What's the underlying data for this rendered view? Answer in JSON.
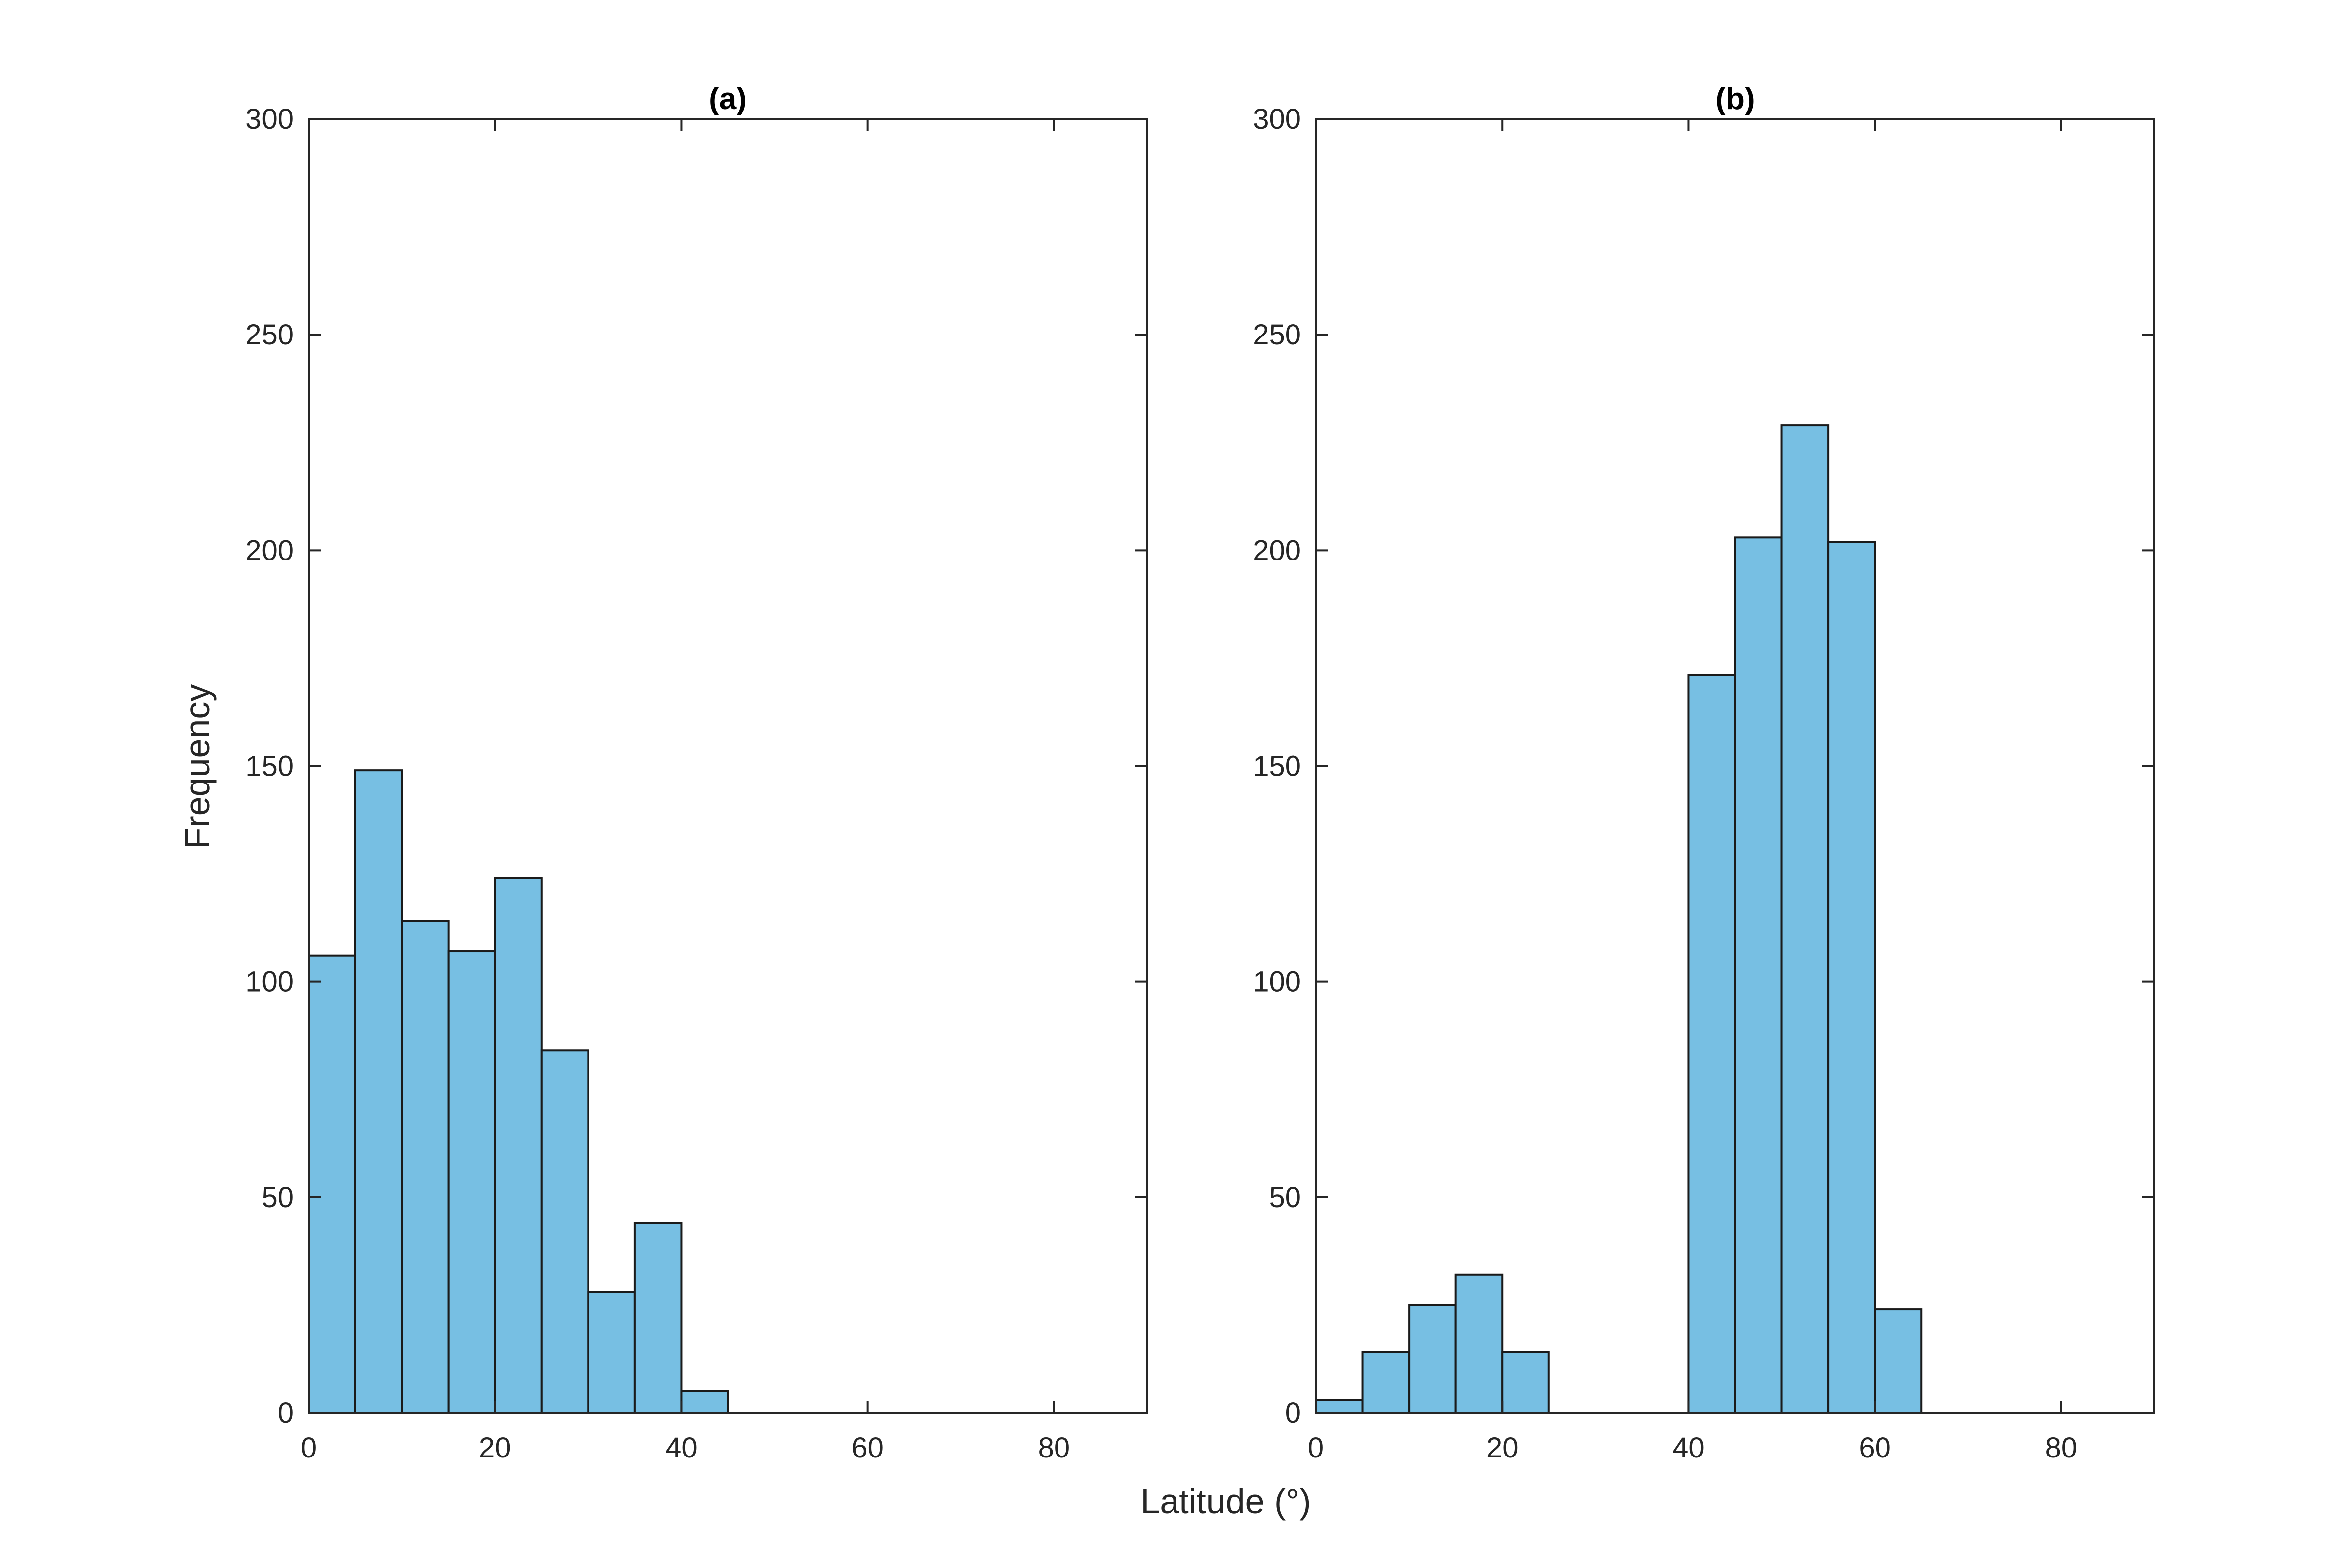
{
  "figure": {
    "xlabel": "Latitude (°)",
    "ylabel": "Frequency"
  },
  "chart_data": [
    {
      "type": "bar",
      "title": "(a)",
      "bin_width": 5,
      "bin_starts": [
        0,
        5,
        10,
        15,
        20,
        25,
        30,
        35,
        40
      ],
      "values": [
        106,
        149,
        114,
        107,
        124,
        84,
        28,
        44,
        5
      ],
      "xlim": [
        0,
        90
      ],
      "ylim": [
        0,
        300
      ],
      "xticks": [
        "0",
        "20",
        "40",
        "60",
        "80"
      ],
      "yticks": [
        "0",
        "50",
        "100",
        "150",
        "200",
        "250",
        "300"
      ],
      "bar_color": "#77bfe3",
      "edge_color": "#1a1a1a",
      "grid": false
    },
    {
      "type": "bar",
      "title": "(b)",
      "bin_width": 5,
      "bin_starts": [
        0,
        5,
        10,
        15,
        20,
        40,
        45,
        50,
        55,
        60
      ],
      "values": [
        3,
        14,
        25,
        32,
        14,
        171,
        203,
        229,
        202,
        24
      ],
      "xlim": [
        0,
        90
      ],
      "ylim": [
        0,
        300
      ],
      "xticks": [
        "0",
        "20",
        "40",
        "60",
        "80"
      ],
      "yticks": [
        "0",
        "50",
        "100",
        "150",
        "200",
        "250",
        "300"
      ],
      "bar_color": "#77bfe3",
      "edge_color": "#1a1a1a",
      "grid": false
    }
  ]
}
